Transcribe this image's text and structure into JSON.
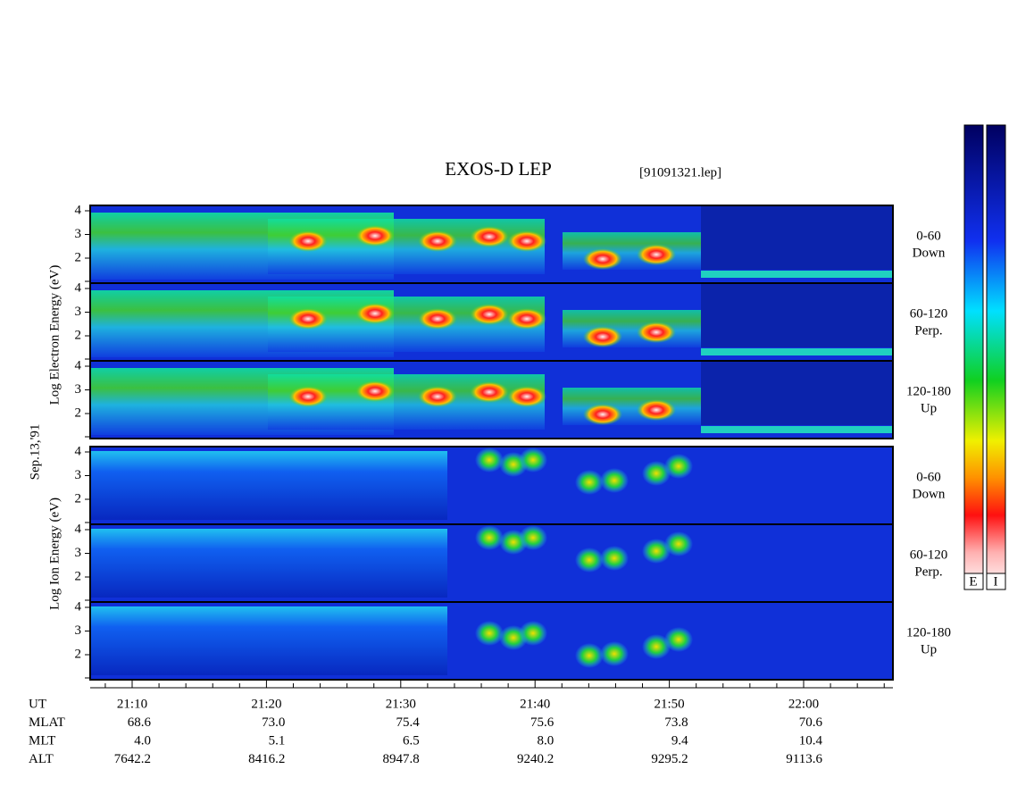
{
  "header": {
    "title": "EXOS-D LEP",
    "file": "[91091321.lep]"
  },
  "date": "Sep.13,'91",
  "electron": {
    "axis_label": "Log Electron Energy (eV)",
    "panels": [
      {
        "line1": "0-60",
        "line2": "Down"
      },
      {
        "line1": "60-120",
        "line2": "Perp."
      },
      {
        "line1": "120-180",
        "line2": "Up"
      }
    ]
  },
  "ion": {
    "axis_label": "Log Ion Energy (eV)",
    "panels": [
      {
        "line1": "0-60",
        "line2": "Down"
      },
      {
        "line1": "60-120",
        "line2": "Perp."
      },
      {
        "line1": "120-180",
        "line2": "Up"
      }
    ]
  },
  "yticks": [
    4,
    3,
    2
  ],
  "colorbars": [
    "E",
    "I"
  ],
  "footer": {
    "rows": [
      {
        "label": "UT",
        "values": [
          "21:10",
          "21:20",
          "21:30",
          "21:40",
          "21:50",
          "22:00"
        ]
      },
      {
        "label": "MLAT",
        "values": [
          "68.6",
          "73.0",
          "75.4",
          "75.6",
          "73.8",
          "70.6"
        ]
      },
      {
        "label": "MLT",
        "values": [
          "4.0",
          "5.1",
          "6.5",
          "8.0",
          "9.4",
          "10.4"
        ]
      },
      {
        "label": "ALT",
        "values": [
          "7642.2",
          "8416.2",
          "8947.8",
          "9240.2",
          "9295.2",
          "9113.6"
        ]
      }
    ]
  }
}
